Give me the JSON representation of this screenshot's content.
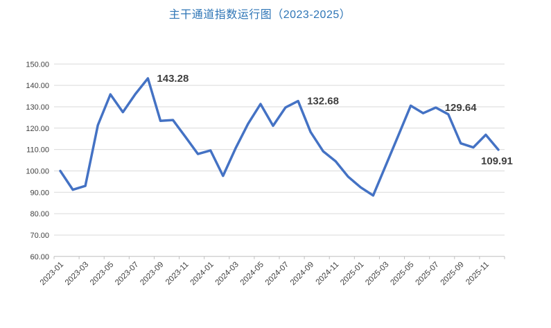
{
  "page": {
    "background": "#ffffff"
  },
  "chart_data": {
    "type": "line",
    "title": "主干通道指数运行图（2023-2025）",
    "title_color": "#2E75B6",
    "line_color": "#4472C4",
    "gridline_color": "#D9D9D9",
    "axis_line_color": "#BFBFBF",
    "label_color": "#404040",
    "annotation_color": "#3F3F3F",
    "ylim": [
      60,
      150
    ],
    "y_tick_step": 10,
    "grid": true,
    "legend": "none",
    "x_label_every": 2,
    "y_tick_labels": [
      "150.00",
      "140.00",
      "130.00",
      "120.00",
      "110.00",
      "100.00",
      "90.00",
      "80.00",
      "70.00",
      "60.00"
    ],
    "x_tick_labels": [
      "2023-01",
      "2023-03",
      "2023-05",
      "2023-07",
      "2023-09",
      "2023-11",
      "2024-01",
      "2024-03",
      "2024-05",
      "2024-07",
      "2024-09",
      "2024-11",
      "2025-01",
      "2025-03",
      "2025-05",
      "2025-07",
      "2025-09",
      "2025-11"
    ],
    "categories": [
      "2023-01",
      "2023-02",
      "2023-03",
      "2023-04",
      "2023-05",
      "2023-06",
      "2023-07",
      "2023-08",
      "2023-09",
      "2023-10",
      "2023-11",
      "2023-12",
      "2024-01",
      "2024-02",
      "2024-03",
      "2024-04",
      "2024-05",
      "2024-06",
      "2024-07",
      "2024-08",
      "2024-09",
      "2024-10",
      "2024-11",
      "2024-12",
      "2025-01",
      "2025-02",
      "2025-03",
      "2025-04",
      "2025-05",
      "2025-06",
      "2025-07",
      "2025-08",
      "2025-09",
      "2025-10",
      "2025-11",
      "2025-12"
    ],
    "values": [
      100.0,
      91.2,
      93.0,
      121.4,
      135.8,
      127.5,
      136.0,
      143.28,
      123.4,
      123.8,
      115.9,
      107.9,
      109.6,
      97.7,
      110.5,
      122.0,
      131.3,
      121.1,
      129.7,
      132.68,
      118.2,
      109.2,
      104.5,
      97.3,
      92.3,
      88.5,
      102.5,
      116.4,
      130.5,
      127.0,
      129.64,
      126.5,
      112.9,
      111.0,
      116.9,
      109.91
    ],
    "annotations": [
      {
        "category": "2023-08",
        "label": "143.28",
        "placement": "right"
      },
      {
        "category": "2024-08",
        "label": "132.68",
        "placement": "right"
      },
      {
        "category": "2025-07",
        "label": "129.64",
        "placement": "right"
      },
      {
        "category": "2025-12",
        "label": "109.91",
        "placement": "below"
      }
    ]
  }
}
